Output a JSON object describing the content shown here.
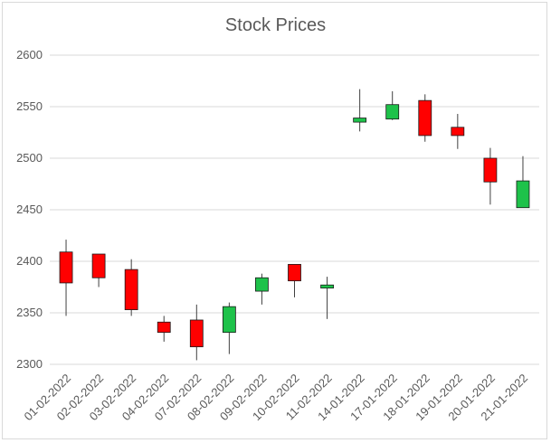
{
  "chart_data": {
    "type": "candlestick",
    "title": "Stock Prices",
    "xlabel": "",
    "ylabel": "",
    "ylim": [
      2300,
      2600
    ],
    "yticks": [
      2300,
      2350,
      2400,
      2450,
      2500,
      2550,
      2600
    ],
    "grid": true,
    "legend": "none",
    "categories": [
      "01-02-2022",
      "02-02-2022",
      "03-02-2022",
      "04-02-2022",
      "07-02-2022",
      "08-02-2022",
      "09-02-2022",
      "10-02-2022",
      "11-02-2022",
      "14-01-2022",
      "17-01-2022",
      "18-01-2022",
      "19-01-2022",
      "20-01-2022",
      "21-01-2022"
    ],
    "series": [
      {
        "open": [
          2409,
          2407,
          2392,
          2341,
          2343,
          2331,
          2371,
          2397,
          2374,
          2535,
          2538,
          2556,
          2530,
          2500,
          2452
        ],
        "high": [
          2421,
          2407,
          2402,
          2347,
          2358,
          2360,
          2388,
          2397,
          2385,
          2567,
          2565,
          2562,
          2543,
          2510,
          2502
        ],
        "low": [
          2347,
          2375,
          2347,
          2322,
          2304,
          2310,
          2358,
          2365,
          2344,
          2526,
          2537,
          2516,
          2509,
          2455,
          2452
        ],
        "close": [
          2379,
          2384,
          2353,
          2331,
          2317,
          2356,
          2384,
          2381,
          2377,
          2539,
          2552,
          2522,
          2522,
          2477,
          2478
        ]
      }
    ],
    "colors": {
      "up": "#1ec24a",
      "down": "#ff0000",
      "outline": "#1a1a1a",
      "wick": "#404040",
      "grid": "#d9d9d9",
      "text": "#595959"
    }
  }
}
